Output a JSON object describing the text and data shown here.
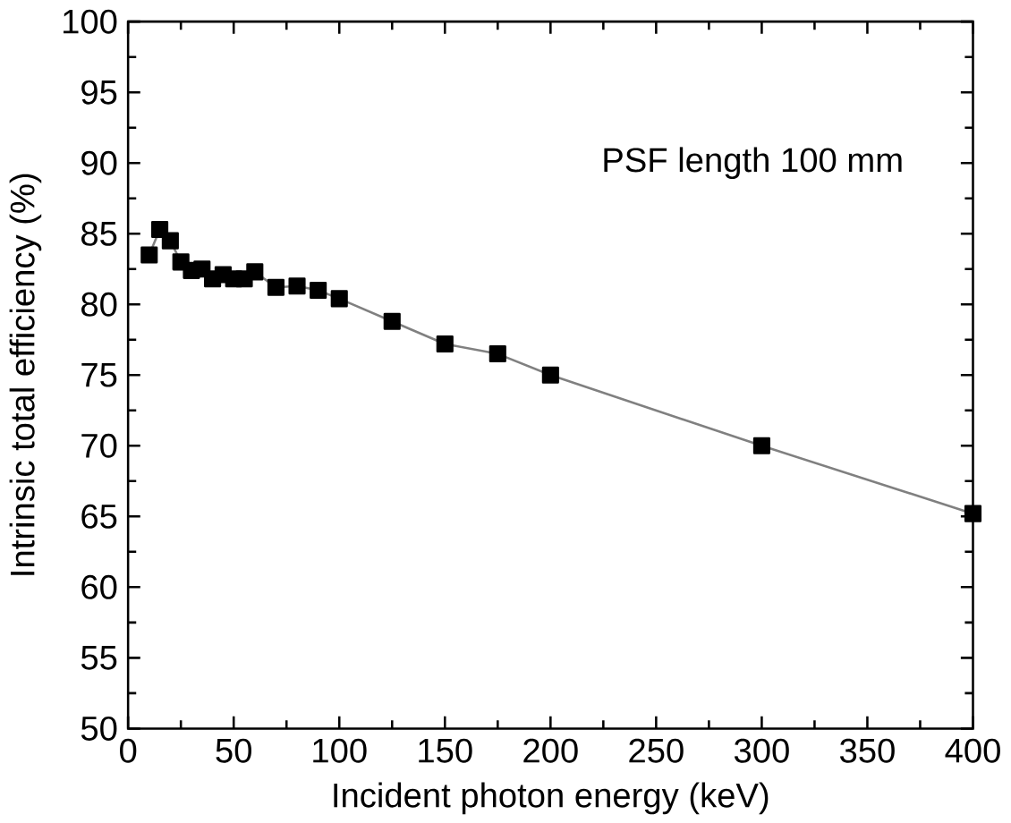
{
  "chart_data": {
    "type": "line",
    "xlabel": "Incident photon energy (keV)",
    "ylabel": "Intrinsic total efficiency (%)",
    "annotations": [
      "PSF length 100 mm"
    ],
    "x": [
      10,
      15,
      20,
      25,
      30,
      35,
      40,
      45,
      50,
      55,
      60,
      70,
      80,
      90,
      100,
      125,
      150,
      175,
      200,
      300,
      400
    ],
    "series": [
      {
        "color": "#000000",
        "values": [
          83.5,
          85.3,
          84.5,
          83,
          82.4,
          82.5,
          81.8,
          82.1,
          81.8,
          81.8,
          82.3,
          81.2,
          81.3,
          81,
          80.4,
          78.8,
          77.2,
          76.5,
          75,
          70,
          65.2
        ]
      }
    ],
    "xlim": [
      0,
      400
    ],
    "ylim": [
      50,
      100
    ],
    "xticks": [
      0,
      50,
      100,
      150,
      200,
      250,
      300,
      350,
      400
    ],
    "yticks": [
      50,
      55,
      60,
      65,
      70,
      75,
      80,
      85,
      90,
      95,
      100
    ],
    "marker": "square",
    "line_style": "solid"
  }
}
